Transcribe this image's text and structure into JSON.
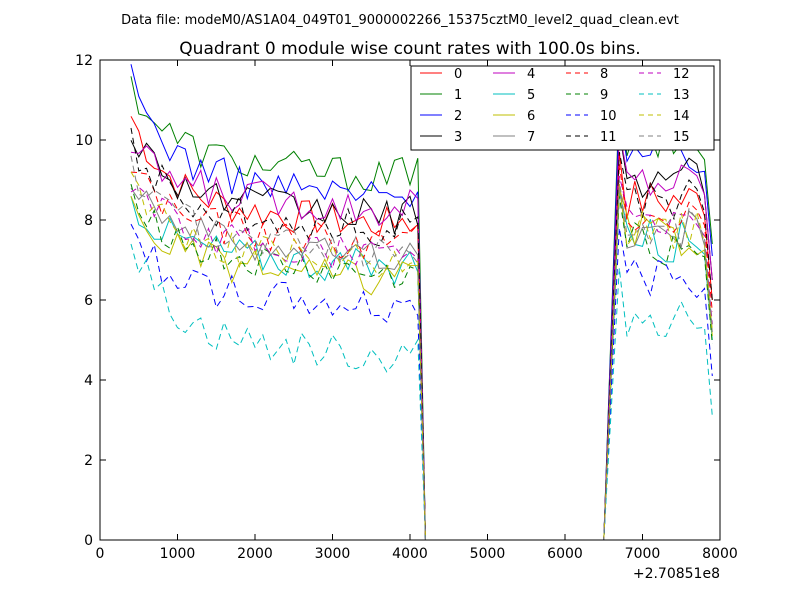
{
  "chart_data": {
    "type": "line",
    "suptitle": "Data file: modeM0/AS1A04_049T01_9000002266_15375cztM0_level2_quad_clean.evt",
    "title": "Quadrant 0 module wise count rates with 100.0s bins.",
    "xlabel": "",
    "ylabel": "",
    "xlim": [
      0,
      8000
    ],
    "ylim": [
      0,
      12
    ],
    "x_offset_label": "+2.70851e8",
    "x_ticks": [
      0,
      1000,
      2000,
      3000,
      4000,
      5000,
      6000,
      7000,
      8000
    ],
    "y_ticks": [
      0,
      2,
      4,
      6,
      8,
      10,
      12
    ],
    "x_tick_labels": [
      "0",
      "1000",
      "2000",
      "3000",
      "4000",
      "5000",
      "6000",
      "7000",
      "8000"
    ],
    "y_tick_labels": [
      "0",
      "2",
      "4",
      "6",
      "8",
      "10",
      "12"
    ],
    "legend_position": "top-right",
    "legend_columns": 4,
    "segments": {
      "bin_width": 100,
      "seg1_start": 400,
      "seg1_end": 4200,
      "gap_start": 4200,
      "gap_end": 6500,
      "seg2_start": 6500,
      "seg2_end": 7900
    },
    "series": [
      {
        "name": "0",
        "color": "#ff0000",
        "dash": "solid",
        "base": 8.4,
        "seg2_base": 8.5,
        "start": 10.6
      },
      {
        "name": "1",
        "color": "#008000",
        "dash": "solid",
        "base": 9.6,
        "seg2_base": 9.9,
        "start": 11.4
      },
      {
        "name": "2",
        "color": "#0000ff",
        "dash": "solid",
        "base": 9.1,
        "seg2_base": 9.6,
        "start": 11.5
      },
      {
        "name": "3",
        "color": "#000000",
        "dash": "solid",
        "base": 8.6,
        "seg2_base": 9.0,
        "start": 10.3
      },
      {
        "name": "4",
        "color": "#bf00bf",
        "dash": "solid",
        "base": 8.8,
        "seg2_base": 9.0,
        "start": 9.8
      },
      {
        "name": "5",
        "color": "#00bfbf",
        "dash": "solid",
        "base": 7.3,
        "seg2_base": 7.5,
        "start": 8.5
      },
      {
        "name": "6",
        "color": "#bfbf00",
        "dash": "solid",
        "base": 7.0,
        "seg2_base": 7.6,
        "start": 8.3
      },
      {
        "name": "7",
        "color": "#808080",
        "dash": "solid",
        "base": 7.6,
        "seg2_base": 7.7,
        "start": 9.2
      },
      {
        "name": "8",
        "color": "#ff0000",
        "dash": "dashed",
        "base": 7.9,
        "seg2_base": 8.2,
        "start": 9.4
      },
      {
        "name": "9",
        "color": "#008000",
        "dash": "dashed",
        "base": 7.1,
        "seg2_base": 7.4,
        "start": 8.9
      },
      {
        "name": "10",
        "color": "#0000ff",
        "dash": "dashed",
        "base": 6.3,
        "seg2_base": 6.6,
        "start": 7.7
      },
      {
        "name": "11",
        "color": "#000000",
        "dash": "dashed",
        "base": 8.3,
        "seg2_base": 8.5,
        "start": 9.9
      },
      {
        "name": "12",
        "color": "#bf00bf",
        "dash": "dashed",
        "base": 7.6,
        "seg2_base": 7.9,
        "start": 9.0
      },
      {
        "name": "13",
        "color": "#00bfbf",
        "dash": "dashed",
        "base": 5.1,
        "seg2_base": 5.6,
        "start": 7.5
      },
      {
        "name": "14",
        "color": "#bfbf00",
        "dash": "dashed",
        "base": 7.4,
        "seg2_base": 7.7,
        "start": 9.1
      },
      {
        "name": "15",
        "color": "#808080",
        "dash": "dashed",
        "base": 7.7,
        "seg2_base": 7.8,
        "start": 9.3
      }
    ]
  }
}
